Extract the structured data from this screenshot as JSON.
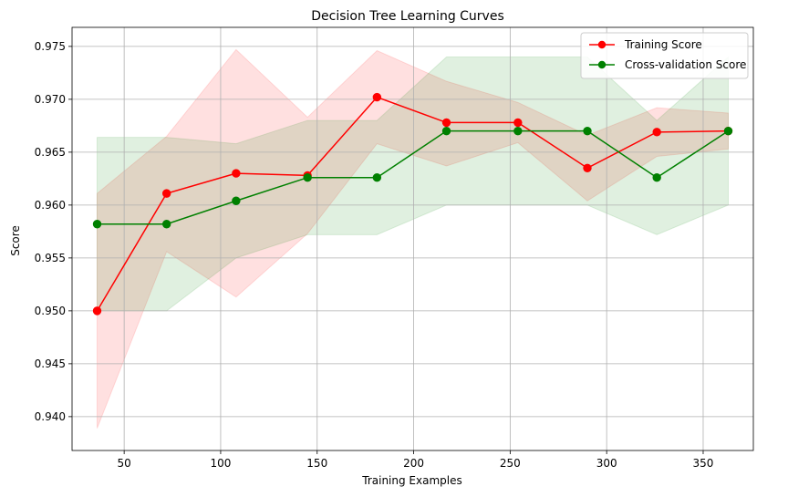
{
  "chart_data": {
    "type": "line",
    "title": "Decision Tree Learning Curves",
    "xlabel": "Training Examples",
    "ylabel": "Score",
    "xlim": [
      23,
      376
    ],
    "ylim": [
      0.9368,
      0.9768
    ],
    "xticks": [
      50,
      100,
      150,
      200,
      250,
      300,
      350
    ],
    "yticks": [
      0.94,
      0.945,
      0.95,
      0.955,
      0.96,
      0.965,
      0.97,
      0.975
    ],
    "ytick_labels": [
      "0.940",
      "0.945",
      "0.950",
      "0.955",
      "0.960",
      "0.965",
      "0.970",
      "0.975"
    ],
    "grid": true,
    "legend_position": "top-right",
    "x": [
      36,
      72,
      108,
      145,
      181,
      217,
      254,
      290,
      326,
      363
    ],
    "series": [
      {
        "name": "Training Score",
        "color": "#ff0000",
        "fill_color": "#ff0000",
        "marker": "circle",
        "values": [
          0.95,
          0.9611,
          0.963,
          0.9628,
          0.9702,
          0.9678,
          0.9678,
          0.9635,
          0.9669,
          0.967
        ],
        "band_upper": [
          0.9611,
          0.9665,
          0.9747,
          0.9683,
          0.9746,
          0.9717,
          0.9697,
          0.9666,
          0.9692,
          0.9687
        ],
        "band_lower": [
          0.9389,
          0.9556,
          0.9513,
          0.9573,
          0.9658,
          0.9637,
          0.9659,
          0.9604,
          0.9646,
          0.9653
        ]
      },
      {
        "name": "Cross-validation Score",
        "color": "#008000",
        "fill_color": "#008000",
        "marker": "circle",
        "values": [
          0.9582,
          0.9582,
          0.9604,
          0.9626,
          0.9626,
          0.967,
          0.967,
          0.967,
          0.9626,
          0.967
        ],
        "band_upper": [
          0.9664,
          0.9664,
          0.9658,
          0.968,
          0.968,
          0.974,
          0.974,
          0.974,
          0.968,
          0.974
        ],
        "band_lower": [
          0.95,
          0.95,
          0.955,
          0.9572,
          0.9572,
          0.96,
          0.96,
          0.96,
          0.9572,
          0.96
        ]
      }
    ]
  }
}
